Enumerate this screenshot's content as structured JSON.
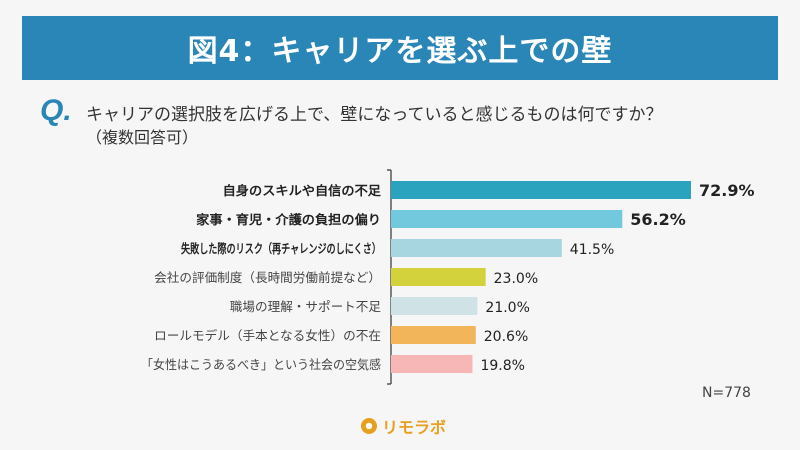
{
  "header": {
    "title": "図4：キャリアを選ぶ上での壁"
  },
  "question": {
    "mark": "Q.",
    "text": "キャリアの選択肢を広げる上で、壁になっていると感じるものは何ですか？",
    "sub": "（複数回答可）"
  },
  "chart_data": {
    "type": "bar",
    "orientation": "horizontal",
    "categories": [
      "自身のスキルや自信の不足",
      "家事・育児・介護の負担の偏り",
      "失敗した際のリスク（再チャレンジのしにくさ）",
      "会社の評価制度（長時間労働前提など）",
      "職場の理解・サポート不足",
      "ロールモデル（手本となる女性）の不在",
      "「女性はこうあるべき」という社会の空気感"
    ],
    "values": [
      72.9,
      56.2,
      41.5,
      23.0,
      21.0,
      20.6,
      19.8
    ],
    "value_labels": [
      "72.9%",
      "56.2%",
      "41.5%",
      "23.0%",
      "21.0%",
      "20.6%",
      "19.8%"
    ],
    "emphasis": [
      true,
      true,
      true,
      false,
      false,
      false,
      false
    ],
    "colors": [
      "#2aa3bf",
      "#72c8dc",
      "#a8d6e0",
      "#d3d23c",
      "#cfe3e7",
      "#f2b55a",
      "#f7b7b7"
    ],
    "xlim": [
      0,
      100
    ],
    "grid": false,
    "note": "N=778"
  },
  "logo": {
    "text": "リモラボ",
    "color": "#e6a01e"
  }
}
